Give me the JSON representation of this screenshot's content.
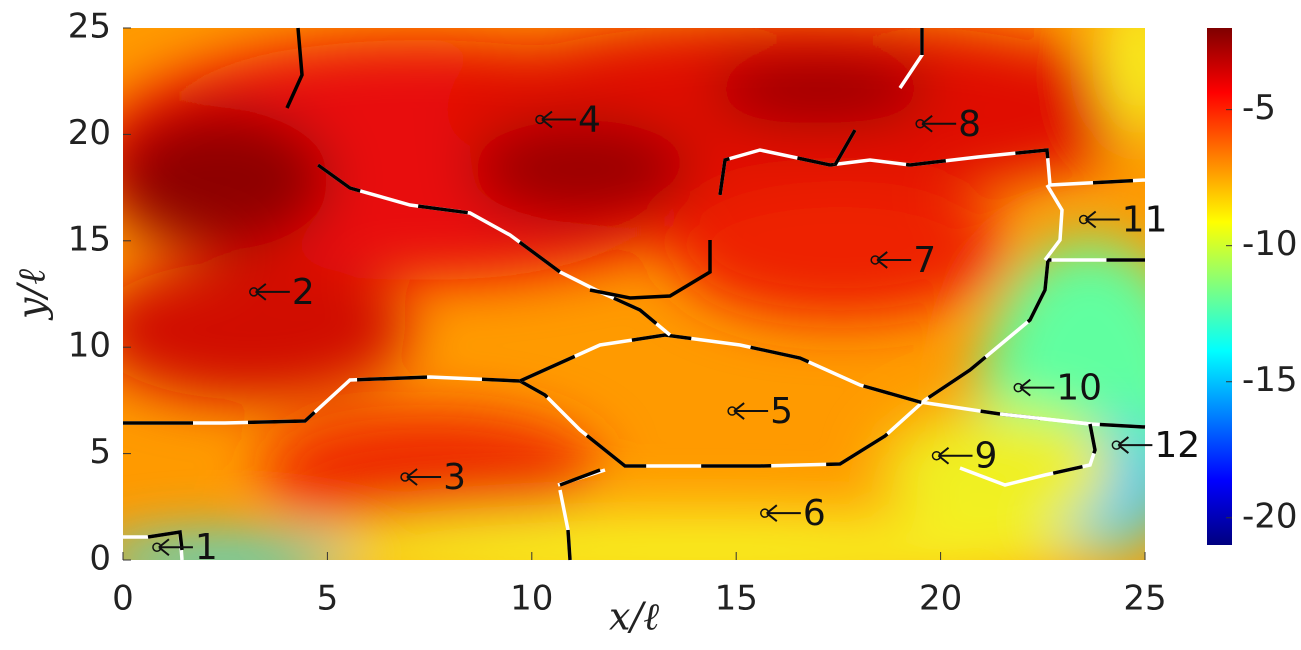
{
  "chart_data": {
    "type": "contour",
    "xlabel": "x/ℓ",
    "ylabel": "y/ℓ",
    "xlim": [
      0,
      25
    ],
    "xticks": [
      0,
      5,
      10,
      15,
      20,
      25
    ],
    "ylim": [
      0,
      25
    ],
    "yticks": [
      0,
      5,
      10,
      15,
      20,
      25
    ],
    "colormap": "jet",
    "clim": [
      -21,
      -2
    ],
    "cticks": [
      -5,
      -10,
      -15,
      -20
    ],
    "annotations": [
      {
        "text": "1",
        "x": 0.83,
        "y": 0.6
      },
      {
        "text": "2",
        "x": 3.2,
        "y": 12.6
      },
      {
        "text": "3",
        "x": 6.9,
        "y": 3.9
      },
      {
        "text": "4",
        "x": 10.2,
        "y": 20.7
      },
      {
        "text": "5",
        "x": 14.9,
        "y": 7.0
      },
      {
        "text": "6",
        "x": 15.7,
        "y": 2.2
      },
      {
        "text": "7",
        "x": 18.4,
        "y": 14.1
      },
      {
        "text": "8",
        "x": 19.5,
        "y": 20.5
      },
      {
        "text": "9",
        "x": 19.9,
        "y": 4.9
      },
      {
        "text": "10",
        "x": 21.9,
        "y": 8.1
      },
      {
        "text": "11",
        "x": 23.5,
        "y": 16.0
      },
      {
        "text": "12",
        "x": 24.3,
        "y": 5.4
      }
    ]
  }
}
